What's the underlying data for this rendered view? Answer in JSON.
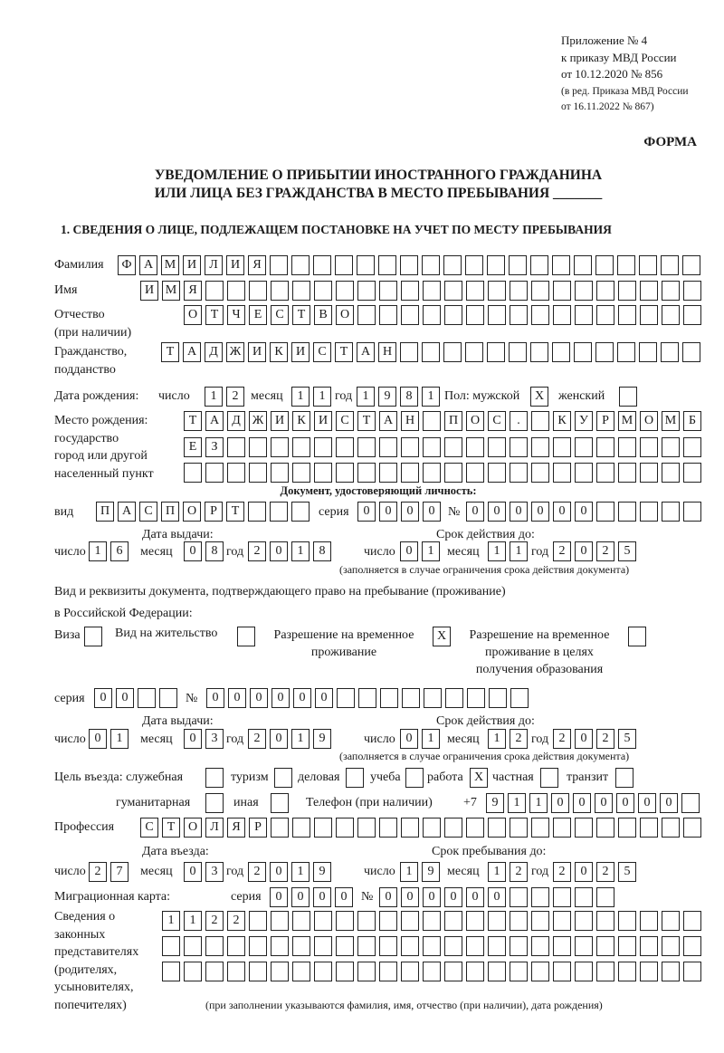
{
  "header": {
    "line1": "Приложение № 4",
    "line2": "к приказу МВД России",
    "line3": "от 10.12.2020 № 856",
    "line4": "(в ред. Приказа МВД России",
    "line5": "от 16.11.2022 № 867)",
    "forma": "ФОРМА",
    "title1": "УВЕДОМЛЕНИЕ О ПРИБЫТИИ ИНОСТРАННОГО ГРАЖДАНИНА",
    "title2": "ИЛИ ЛИЦА БЕЗ ГРАЖДАНСТВА В МЕСТО ПРЕБЫВАНИЯ _______",
    "section1": "1. СВЕДЕНИЯ О ЛИЦЕ, ПОДЛЕЖАЩЕМ ПОСТАНОВКЕ НА УЧЕТ ПО МЕСТУ ПРЕБЫВАНИЯ"
  },
  "labels": {
    "surname": "Фамилия",
    "name": "Имя",
    "patronymic1": "Отчество",
    "patronymic2": "(при наличии)",
    "citizenship1": "Гражданство,",
    "citizenship2": "подданство",
    "birth_date": "Дата рождения:",
    "day": "число",
    "month": "месяц",
    "year": "год",
    "sex": "Пол: мужской",
    "female": "женский",
    "birthplace1": "Место рождения:",
    "birthplace2": "государство",
    "birthplace3": "город или другой",
    "birthplace4": "населенный пункт",
    "id_doc": "Документ, удостоверяющий личность:",
    "kind": "вид",
    "series": "серия",
    "number": "№",
    "issue_date": "Дата выдачи:",
    "valid_until": "Срок действия до:",
    "validity_note": "(заполняется в случае ограничения срока действия документа)",
    "right_doc1": "Вид и реквизиты документа, подтверждающего право на пребывание (проживание)",
    "right_doc2": "в Российской Федерации:",
    "visa": "Виза",
    "residence_permit": "Вид на жительство",
    "temp_residence1": "Разрешение на временное",
    "temp_residence2": "проживание",
    "temp_edu1": "Разрешение на временное",
    "temp_edu2": "проживание в целях",
    "temp_edu3": "получения образования",
    "purpose": "Цель въезда: служебная",
    "tourism": "туризм",
    "business": "деловая",
    "study": "учеба",
    "work": "работа",
    "private": "частная",
    "transit": "транзит",
    "humanitarian": "гуманитарная",
    "other": "иная",
    "phone": "Телефон (при наличии)",
    "phone_prefix": "+7",
    "profession": "Профессия",
    "entry_date": "Дата въезда:",
    "stay_until": "Срок пребывания до:",
    "migration_card": "Миграционная карта:",
    "reps1": "Сведения о",
    "reps2": "законных",
    "reps3": "представителях",
    "reps4": "(родителях,",
    "reps5": "усыновителях,",
    "reps6": "попечителях)",
    "reps_note": "(при заполнении указываются фамилия, имя, отчество (при наличии), дата рождения)"
  },
  "fields": {
    "surname": [
      "Ф",
      "А",
      "М",
      "И",
      "Л",
      "И",
      "Я"
    ],
    "name": [
      "И",
      "М",
      "Я"
    ],
    "patronymic": [
      "О",
      "Т",
      "Ч",
      "Е",
      "С",
      "Т",
      "В",
      "О"
    ],
    "citizenship": [
      "Т",
      "А",
      "Д",
      "Ж",
      "И",
      "К",
      "И",
      "С",
      "Т",
      "А",
      "Н"
    ],
    "birth_day": [
      "1",
      "2"
    ],
    "birth_month": [
      "1",
      "1"
    ],
    "birth_year": [
      "1",
      "9",
      "8",
      "1"
    ],
    "sex_male": [
      "X"
    ],
    "sex_female": [
      ""
    ],
    "birthplace_1": [
      "Т",
      "А",
      "Д",
      "Ж",
      "И",
      "К",
      "И",
      "С",
      "Т",
      "А",
      "Н",
      "",
      "П",
      "О",
      "С",
      ".",
      "",
      "К",
      "У",
      "Р",
      "М",
      "О",
      "М",
      "Б"
    ],
    "birthplace_2": [
      "Е",
      "З"
    ],
    "birthplace_3": [],
    "id_kind": [
      "П",
      "А",
      "С",
      "П",
      "О",
      "Р",
      "Т"
    ],
    "id_series": [
      "0",
      "0",
      "0",
      "0"
    ],
    "id_number": [
      "0",
      "0",
      "0",
      "0",
      "0",
      "0"
    ],
    "id_issue_day": [
      "1",
      "6"
    ],
    "id_issue_month": [
      "0",
      "8"
    ],
    "id_issue_year": [
      "2",
      "0",
      "1",
      "8"
    ],
    "id_valid_day": [
      "0",
      "1"
    ],
    "id_valid_month": [
      "1",
      "1"
    ],
    "id_valid_year": [
      "2",
      "0",
      "2",
      "5"
    ],
    "visa": [
      ""
    ],
    "residence_permit": [
      ""
    ],
    "temp_residence": [
      "X"
    ],
    "temp_edu": [
      ""
    ],
    "rd_series": [
      "0",
      "0"
    ],
    "rd_number": [
      "0",
      "0",
      "0",
      "0",
      "0",
      "0"
    ],
    "rd_issue_day": [
      "0",
      "1"
    ],
    "rd_issue_month": [
      "0",
      "3"
    ],
    "rd_issue_year": [
      "2",
      "0",
      "1",
      "9"
    ],
    "rd_valid_day": [
      "0",
      "1"
    ],
    "rd_valid_month": [
      "1",
      "2"
    ],
    "rd_valid_year": [
      "2",
      "0",
      "2",
      "5"
    ],
    "purpose_service": [
      ""
    ],
    "purpose_tourism": [
      ""
    ],
    "purpose_business": [
      ""
    ],
    "purpose_study": [
      ""
    ],
    "purpose_work": [
      "X"
    ],
    "purpose_private": [
      ""
    ],
    "purpose_transit": [
      ""
    ],
    "purpose_humanitarian": [
      ""
    ],
    "purpose_other": [
      ""
    ],
    "phone": [
      "9",
      "1",
      "1",
      "0",
      "0",
      "0",
      "0",
      "0",
      "0"
    ],
    "profession": [
      "С",
      "Т",
      "О",
      "Л",
      "Я",
      "Р"
    ],
    "entry_day": [
      "2",
      "7"
    ],
    "entry_month": [
      "0",
      "3"
    ],
    "entry_year": [
      "2",
      "0",
      "1",
      "9"
    ],
    "stay_day": [
      "1",
      "9"
    ],
    "stay_month": [
      "1",
      "2"
    ],
    "stay_year": [
      "2",
      "0",
      "2",
      "5"
    ],
    "mc_series": [
      "0",
      "0",
      "0",
      "0"
    ],
    "mc_number": [
      "0",
      "0",
      "0",
      "0",
      "0",
      "0"
    ],
    "reps_1": [
      "1",
      "1",
      "2",
      "2"
    ],
    "reps_2": [],
    "reps_3": []
  }
}
